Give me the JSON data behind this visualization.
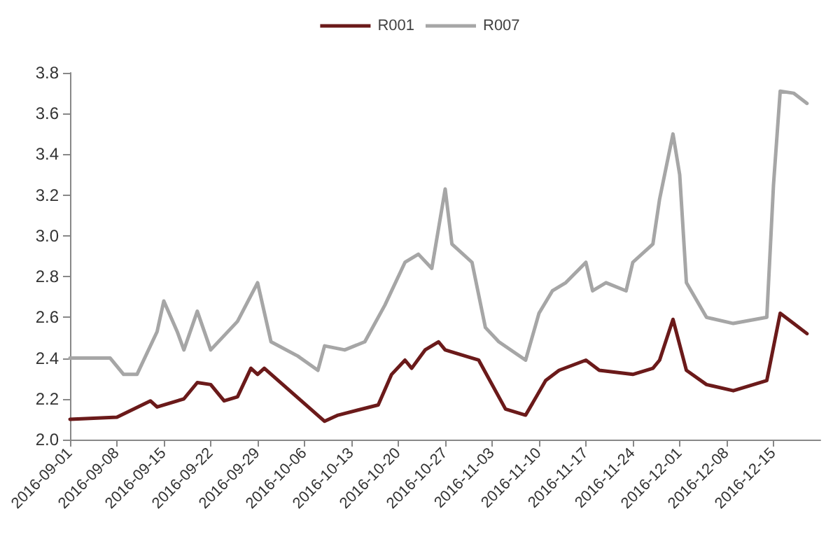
{
  "chart_data": {
    "type": "line",
    "legend": "top",
    "grid": false,
    "marker": "none",
    "line_style": "solid",
    "xlim": [
      "2016-09-01",
      "2016-12-22"
    ],
    "xticks": [
      "2016-09-01",
      "2016-09-08",
      "2016-09-15",
      "2016-09-22",
      "2016-09-29",
      "2016-10-06",
      "2016-10-13",
      "2016-10-20",
      "2016-10-27",
      "2016-11-03",
      "2016-11-10",
      "2016-11-17",
      "2016-11-24",
      "2016-12-01",
      "2016-12-08",
      "2016-12-15"
    ],
    "ylim": [
      2.0,
      3.8
    ],
    "yticks": [
      {
        "value": 2,
        "label": "2.0"
      },
      2.2,
      2.4,
      2.6,
      2.8,
      {
        "value": 3,
        "label": "3.0"
      },
      3.2,
      3.4,
      3.6,
      3.8
    ],
    "series": [
      {
        "name": "R001",
        "color": "#6b1a1a",
        "x": [
          "2016-09-01",
          "2016-09-08",
          "2016-09-13",
          "2016-09-14",
          "2016-09-18",
          "2016-09-20",
          "2016-09-22",
          "2016-09-24",
          "2016-09-26",
          "2016-09-28",
          "2016-09-29",
          "2016-09-30",
          "2016-10-09",
          "2016-10-11",
          "2016-10-17",
          "2016-10-19",
          "2016-10-21",
          "2016-10-22",
          "2016-10-24",
          "2016-10-26",
          "2016-10-27",
          "2016-11-01",
          "2016-11-05",
          "2016-11-08",
          "2016-11-11",
          "2016-11-13",
          "2016-11-17",
          "2016-11-19",
          "2016-11-24",
          "2016-11-27",
          "2016-11-28",
          "2016-11-30",
          "2016-12-02",
          "2016-12-05",
          "2016-12-09",
          "2016-12-14",
          "2016-12-16",
          "2016-12-18",
          "2016-12-20"
        ],
        "values": [
          2.1,
          2.11,
          2.19,
          2.16,
          2.2,
          2.28,
          2.27,
          2.19,
          2.21,
          2.35,
          2.32,
          2.35,
          2.09,
          2.12,
          2.17,
          2.32,
          2.39,
          2.35,
          2.44,
          2.48,
          2.44,
          2.39,
          2.15,
          2.12,
          2.29,
          2.34,
          2.39,
          2.34,
          2.32,
          2.35,
          2.39,
          2.59,
          2.34,
          2.27,
          2.24,
          2.29,
          2.62,
          2.57,
          2.52
        ]
      },
      {
        "name": "R007",
        "color": "#a6a6a6",
        "x": [
          "2016-09-01",
          "2016-09-07",
          "2016-09-09",
          "2016-09-11",
          "2016-09-14",
          "2016-09-15",
          "2016-09-17",
          "2016-09-18",
          "2016-09-20",
          "2016-09-22",
          "2016-09-26",
          "2016-09-29",
          "2016-10-01",
          "2016-10-05",
          "2016-10-08",
          "2016-10-09",
          "2016-10-12",
          "2016-10-15",
          "2016-10-18",
          "2016-10-21",
          "2016-10-23",
          "2016-10-25",
          "2016-10-27",
          "2016-10-28",
          "2016-10-31",
          "2016-11-02",
          "2016-11-04",
          "2016-11-08",
          "2016-11-10",
          "2016-11-12",
          "2016-11-14",
          "2016-11-17",
          "2016-11-18",
          "2016-11-20",
          "2016-11-23",
          "2016-11-24",
          "2016-11-27",
          "2016-11-28",
          "2016-11-30",
          "2016-12-01",
          "2016-12-02",
          "2016-12-05",
          "2016-12-09",
          "2016-12-14",
          "2016-12-15",
          "2016-12-16",
          "2016-12-18",
          "2016-12-20"
        ],
        "values": [
          2.4,
          2.4,
          2.32,
          2.32,
          2.53,
          2.68,
          2.53,
          2.44,
          2.63,
          2.44,
          2.58,
          2.77,
          2.48,
          2.41,
          2.34,
          2.46,
          2.44,
          2.48,
          2.66,
          2.87,
          2.91,
          2.84,
          3.23,
          2.96,
          2.87,
          2.55,
          2.48,
          2.39,
          2.62,
          2.73,
          2.77,
          2.87,
          2.73,
          2.77,
          2.73,
          2.87,
          2.96,
          3.18,
          3.5,
          3.3,
          2.77,
          2.6,
          2.57,
          2.6,
          3.25,
          3.71,
          3.7,
          3.65
        ]
      }
    ]
  }
}
